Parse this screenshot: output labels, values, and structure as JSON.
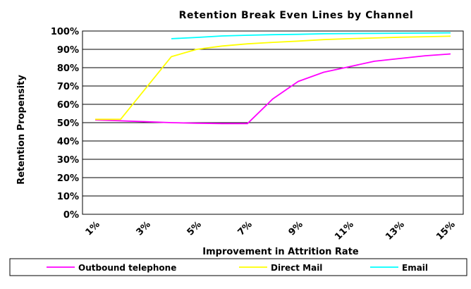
{
  "chart_data": {
    "type": "line",
    "title": "Retention Break Even Lines by Channel",
    "xlabel": "Improvement in Attrition Rate",
    "ylabel": "Retention Propensity",
    "x": [
      1,
      2,
      3,
      4,
      5,
      6,
      7,
      8,
      9,
      10,
      11,
      12,
      13,
      14,
      15
    ],
    "x_tick_labels": [
      "1%",
      "3%",
      "5%",
      "7%",
      "9%",
      "11%",
      "13%",
      "15%"
    ],
    "x_tick_values": [
      1,
      3,
      5,
      7,
      9,
      11,
      13,
      15
    ],
    "xlim": [
      0.5,
      15.5
    ],
    "ylim": [
      0,
      100
    ],
    "y_tick_labels": [
      "0%",
      "10%",
      "20%",
      "30%",
      "40%",
      "50%",
      "60%",
      "70%",
      "80%",
      "90%",
      "100%"
    ],
    "y_tick_values": [
      0,
      10,
      20,
      30,
      40,
      50,
      60,
      70,
      80,
      90,
      100
    ],
    "grid": "horizontal",
    "legend": "bottom",
    "series": [
      {
        "name": "Outbound telephone",
        "color": "#ff00ff",
        "x": [
          1,
          2,
          3,
          4,
          5,
          6,
          7,
          8,
          9,
          10,
          11,
          12,
          13,
          14,
          15
        ],
        "values": [
          51.5,
          51.0,
          50.5,
          50.0,
          49.7,
          49.5,
          49.5,
          63.0,
          72.5,
          77.5,
          80.5,
          83.5,
          85.0,
          86.5,
          87.5
        ]
      },
      {
        "name": "Direct Mail",
        "color": "#ffff00",
        "x": [
          1,
          2,
          4,
          5,
          6,
          7,
          8,
          9,
          10,
          11,
          12,
          13,
          14,
          15
        ],
        "values": [
          51.8,
          51.8,
          86.0,
          90.0,
          91.8,
          93.0,
          93.8,
          94.5,
          95.3,
          95.8,
          96.2,
          96.6,
          96.9,
          97.2
        ]
      },
      {
        "name": "Email",
        "color": "#00ffff",
        "x": [
          4,
          5,
          6,
          7,
          8,
          9,
          10,
          11,
          12,
          13,
          14,
          15
        ],
        "values": [
          95.8,
          96.5,
          97.3,
          97.7,
          98.0,
          98.2,
          98.5,
          98.6,
          98.7,
          98.8,
          98.9,
          99.0
        ]
      }
    ]
  }
}
